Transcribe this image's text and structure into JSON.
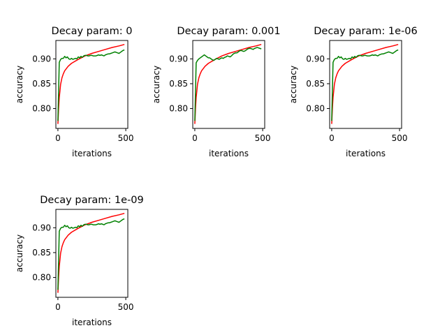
{
  "chart_data": [
    {
      "type": "line",
      "title": "Decay param: 0",
      "xlabel": "iterations",
      "ylabel": "accuracy",
      "xlim": [
        -15,
        515
      ],
      "ylim": [
        0.76,
        0.937
      ],
      "xticks": [
        0,
        500
      ],
      "yticks": [
        0.8,
        0.85,
        0.9
      ],
      "series": [
        {
          "color": "#ff0000",
          "x": [
            0,
            5,
            10,
            20,
            30,
            40,
            50,
            75,
            100,
            150,
            200,
            250,
            300,
            350,
            400,
            450,
            490
          ],
          "y": [
            0.769,
            0.8,
            0.822,
            0.849,
            0.862,
            0.87,
            0.876,
            0.885,
            0.891,
            0.899,
            0.906,
            0.911,
            0.915,
            0.919,
            0.923,
            0.926,
            0.929
          ]
        },
        {
          "color": "#008000",
          "x": [
            0,
            10,
            20,
            30,
            40,
            50,
            60,
            70,
            80,
            90,
            100,
            110,
            120,
            130,
            140,
            150,
            160,
            170,
            180,
            190,
            200,
            210,
            220,
            230,
            240,
            250,
            260,
            270,
            280,
            290,
            300,
            310,
            320,
            330,
            340,
            350,
            360,
            370,
            380,
            390,
            400,
            410,
            420,
            430,
            440,
            450,
            460,
            470,
            480,
            490
          ],
          "y": [
            0.775,
            0.893,
            0.899,
            0.901,
            0.901,
            0.905,
            0.902,
            0.904,
            0.9,
            0.899,
            0.901,
            0.899,
            0.9,
            0.901,
            0.9,
            0.904,
            0.902,
            0.905,
            0.903,
            0.906,
            0.907,
            0.907,
            0.906,
            0.906,
            0.907,
            0.907,
            0.906,
            0.906,
            0.906,
            0.907,
            0.908,
            0.907,
            0.908,
            0.907,
            0.906,
            0.908,
            0.909,
            0.91,
            0.91,
            0.911,
            0.912,
            0.913,
            0.914,
            0.913,
            0.912,
            0.911,
            0.913,
            0.915,
            0.917,
            0.918
          ]
        }
      ]
    },
    {
      "type": "line",
      "title": "Decay param: 0.001",
      "xlabel": "iterations",
      "ylabel": "accuracy",
      "xlim": [
        -15,
        515
      ],
      "ylim": [
        0.76,
        0.937
      ],
      "xticks": [
        0,
        500
      ],
      "yticks": [
        0.8,
        0.85,
        0.9
      ],
      "series": [
        {
          "color": "#ff0000",
          "x": [
            0,
            5,
            10,
            20,
            30,
            40,
            50,
            75,
            100,
            150,
            200,
            250,
            300,
            350,
            400,
            450,
            490
          ],
          "y": [
            0.769,
            0.8,
            0.822,
            0.849,
            0.862,
            0.87,
            0.876,
            0.885,
            0.891,
            0.899,
            0.906,
            0.911,
            0.915,
            0.919,
            0.923,
            0.926,
            0.929
          ]
        },
        {
          "color": "#008000",
          "x": [
            0,
            10,
            20,
            30,
            40,
            50,
            60,
            70,
            80,
            90,
            100,
            110,
            120,
            130,
            140,
            150,
            160,
            170,
            180,
            190,
            200,
            210,
            220,
            230,
            240,
            250,
            260,
            270,
            280,
            290,
            300,
            310,
            320,
            330,
            340,
            350,
            360,
            370,
            380,
            390,
            400,
            410,
            420,
            430,
            440,
            450,
            460,
            470,
            480,
            490
          ],
          "y": [
            0.775,
            0.892,
            0.897,
            0.9,
            0.902,
            0.904,
            0.906,
            0.908,
            0.906,
            0.904,
            0.902,
            0.902,
            0.9,
            0.898,
            0.897,
            0.899,
            0.901,
            0.9,
            0.899,
            0.901,
            0.902,
            0.901,
            0.903,
            0.904,
            0.906,
            0.905,
            0.904,
            0.906,
            0.909,
            0.911,
            0.912,
            0.912,
            0.914,
            0.916,
            0.917,
            0.916,
            0.915,
            0.916,
            0.918,
            0.92,
            0.921,
            0.921,
            0.92,
            0.919,
            0.921,
            0.922,
            0.923,
            0.922,
            0.921,
            0.92
          ]
        }
      ]
    },
    {
      "type": "line",
      "title": "Decay param: 1e-06",
      "xlabel": "iterations",
      "ylabel": "accuracy",
      "xlim": [
        -15,
        515
      ],
      "ylim": [
        0.76,
        0.937
      ],
      "xticks": [
        0,
        500
      ],
      "yticks": [
        0.8,
        0.85,
        0.9
      ],
      "series": [
        {
          "color": "#ff0000",
          "x": [
            0,
            5,
            10,
            20,
            30,
            40,
            50,
            75,
            100,
            150,
            200,
            250,
            300,
            350,
            400,
            450,
            490
          ],
          "y": [
            0.769,
            0.8,
            0.822,
            0.849,
            0.862,
            0.87,
            0.876,
            0.885,
            0.891,
            0.899,
            0.906,
            0.911,
            0.915,
            0.919,
            0.923,
            0.926,
            0.929
          ]
        },
        {
          "color": "#008000",
          "x": [
            0,
            10,
            20,
            30,
            40,
            50,
            60,
            70,
            80,
            90,
            100,
            110,
            120,
            130,
            140,
            150,
            160,
            170,
            180,
            190,
            200,
            210,
            220,
            230,
            240,
            250,
            260,
            270,
            280,
            290,
            300,
            310,
            320,
            330,
            340,
            350,
            360,
            370,
            380,
            390,
            400,
            410,
            420,
            430,
            440,
            450,
            460,
            470,
            480,
            490
          ],
          "y": [
            0.775,
            0.893,
            0.899,
            0.901,
            0.901,
            0.905,
            0.902,
            0.904,
            0.9,
            0.899,
            0.901,
            0.899,
            0.9,
            0.901,
            0.9,
            0.904,
            0.902,
            0.905,
            0.903,
            0.906,
            0.907,
            0.907,
            0.906,
            0.906,
            0.907,
            0.907,
            0.906,
            0.906,
            0.906,
            0.907,
            0.908,
            0.907,
            0.908,
            0.907,
            0.906,
            0.908,
            0.909,
            0.91,
            0.91,
            0.911,
            0.912,
            0.913,
            0.914,
            0.913,
            0.912,
            0.911,
            0.913,
            0.915,
            0.917,
            0.918
          ]
        }
      ]
    },
    {
      "type": "line",
      "title": "Decay param: 1e-09",
      "xlabel": "iterations",
      "ylabel": "accuracy",
      "xlim": [
        -15,
        515
      ],
      "ylim": [
        0.76,
        0.937
      ],
      "xticks": [
        0,
        500
      ],
      "yticks": [
        0.8,
        0.85,
        0.9
      ],
      "series": [
        {
          "color": "#ff0000",
          "x": [
            0,
            5,
            10,
            20,
            30,
            40,
            50,
            75,
            100,
            150,
            200,
            250,
            300,
            350,
            400,
            450,
            490
          ],
          "y": [
            0.769,
            0.8,
            0.822,
            0.849,
            0.862,
            0.87,
            0.876,
            0.885,
            0.891,
            0.899,
            0.906,
            0.911,
            0.915,
            0.919,
            0.923,
            0.926,
            0.929
          ]
        },
        {
          "color": "#008000",
          "x": [
            0,
            10,
            20,
            30,
            40,
            50,
            60,
            70,
            80,
            90,
            100,
            110,
            120,
            130,
            140,
            150,
            160,
            170,
            180,
            190,
            200,
            210,
            220,
            230,
            240,
            250,
            260,
            270,
            280,
            290,
            300,
            310,
            320,
            330,
            340,
            350,
            360,
            370,
            380,
            390,
            400,
            410,
            420,
            430,
            440,
            450,
            460,
            470,
            480,
            490
          ],
          "y": [
            0.775,
            0.893,
            0.899,
            0.901,
            0.901,
            0.905,
            0.902,
            0.904,
            0.9,
            0.899,
            0.901,
            0.899,
            0.9,
            0.901,
            0.9,
            0.904,
            0.902,
            0.905,
            0.903,
            0.906,
            0.907,
            0.907,
            0.906,
            0.906,
            0.907,
            0.907,
            0.906,
            0.906,
            0.906,
            0.907,
            0.908,
            0.907,
            0.908,
            0.907,
            0.906,
            0.908,
            0.909,
            0.91,
            0.91,
            0.911,
            0.912,
            0.913,
            0.914,
            0.913,
            0.912,
            0.911,
            0.913,
            0.915,
            0.917,
            0.918
          ]
        }
      ]
    }
  ]
}
